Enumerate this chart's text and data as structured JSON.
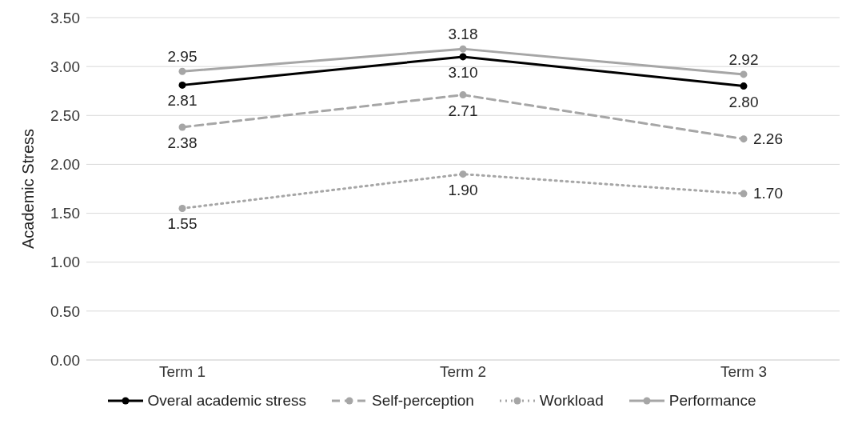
{
  "chart_data": {
    "type": "line",
    "ylabel": "Academic Stress",
    "categories": [
      "Term 1",
      "Term 2",
      "Term 3"
    ],
    "series": [
      {
        "name": "Overal academic stress",
        "color": "#000000",
        "line_style": "solid",
        "values": [
          2.81,
          3.1,
          2.8
        ],
        "value_labels": [
          "2.81",
          "3.10",
          "2.80"
        ]
      },
      {
        "name": "Self-perception",
        "color": "#a6a6a6",
        "line_style": "dashed",
        "values": [
          2.38,
          2.71,
          2.26
        ],
        "value_labels": [
          "2.38",
          "2.71",
          "2.26"
        ]
      },
      {
        "name": "Workload",
        "color": "#a6a6a6",
        "line_style": "dotted",
        "values": [
          1.55,
          1.9,
          1.7
        ],
        "value_labels": [
          "1.55",
          "1.90",
          "1.70"
        ]
      },
      {
        "name": "Performance",
        "color": "#a6a6a6",
        "line_style": "solid",
        "values": [
          2.95,
          3.18,
          2.92
        ],
        "value_labels": [
          "2.95",
          "3.18",
          "2.92"
        ]
      }
    ],
    "ylim": [
      0,
      3.5
    ],
    "yticks": [
      {
        "value": 0,
        "label": "0.00"
      },
      {
        "value": 0.5,
        "label": "0.50"
      },
      {
        "value": 1,
        "label": "1.00"
      },
      {
        "value": 1.5,
        "label": "1.50"
      },
      {
        "value": 2,
        "label": "2.00"
      },
      {
        "value": 2.5,
        "label": "2.50"
      },
      {
        "value": 3,
        "label": "3.00"
      },
      {
        "value": 3.5,
        "label": "3.50"
      }
    ],
    "grid": "y",
    "legend": "bottom",
    "marker": "circle"
  }
}
